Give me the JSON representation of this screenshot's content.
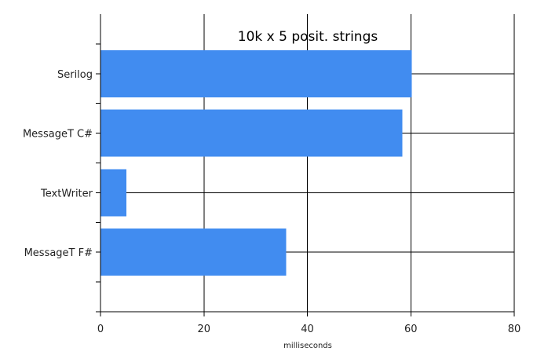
{
  "chart_data": {
    "type": "bar",
    "orientation": "horizontal",
    "title": "10k x 5 posit. strings",
    "xlabel": "milliseconds",
    "ylabel": "",
    "categories": [
      "Serilog",
      "MessageT C#",
      "TextWriter",
      "MessageT F#"
    ],
    "values": [
      60.2,
      58.4,
      5.0,
      35.9
    ],
    "xlim": [
      0,
      80
    ],
    "xticks": [
      0,
      20,
      40,
      60,
      80
    ],
    "grid": true,
    "legend": "none",
    "bar_color": "#418cf0"
  }
}
